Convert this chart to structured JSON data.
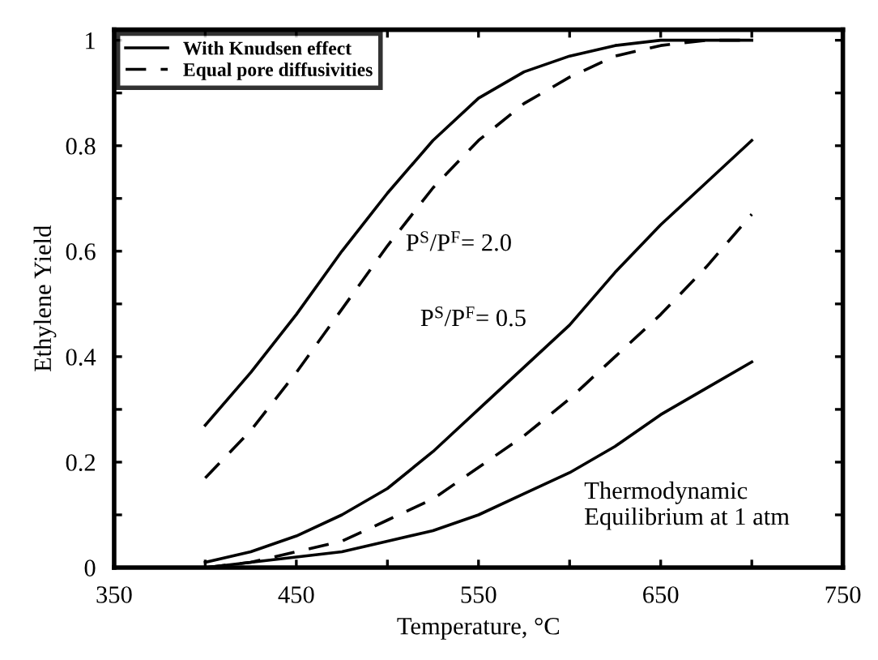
{
  "chart_data": {
    "type": "line",
    "xlabel": "Temperature, °C",
    "ylabel": "Ethylene Yield",
    "xlim": [
      350,
      750
    ],
    "ylim": [
      0,
      1.02
    ],
    "xticks": [
      350,
      {
        "value": 400,
        "label": null
      },
      450,
      {
        "value": 500,
        "label": null
      },
      550,
      {
        "value": 600,
        "label": null
      },
      650,
      {
        "value": 700,
        "label": null
      },
      750
    ],
    "yticks": [
      0,
      {
        "value": 0.1,
        "label": null
      },
      0.2,
      {
        "value": 0.3,
        "label": null
      },
      0.4,
      {
        "value": 0.5,
        "label": null
      },
      0.6,
      {
        "value": 0.7,
        "label": null
      },
      0.8,
      {
        "value": 0.9,
        "label": null
      },
      1
    ],
    "grid": false,
    "legend": "top left",
    "series": [
      {
        "name": "With Knudsen effect",
        "color": "#000000",
        "line_style": "solid",
        "x": [
          400,
          425,
          450,
          475,
          500,
          525,
          550,
          575,
          600,
          625,
          650,
          675,
          700
        ],
        "values": [
          0.27,
          0.37,
          0.48,
          0.6,
          0.71,
          0.81,
          0.89,
          0.94,
          0.97,
          0.99,
          1.0,
          1.0,
          1.0
        ]
      },
      {
        "name": "Equal pore diffusivities",
        "color": "#000000",
        "line_style": "dashed",
        "x": [
          400,
          425,
          450,
          475,
          500,
          525,
          550,
          575,
          600,
          625,
          650,
          675,
          700
        ],
        "values": [
          0.17,
          0.26,
          0.37,
          0.49,
          0.61,
          0.72,
          0.81,
          0.88,
          0.93,
          0.97,
          0.99,
          1.0,
          1.0
        ]
      },
      {
        "color": "#000000",
        "line_style": "solid",
        "x": [
          400,
          425,
          450,
          475,
          500,
          525,
          550,
          575,
          600,
          625,
          650,
          675,
          700
        ],
        "values": [
          0.01,
          0.03,
          0.06,
          0.1,
          0.15,
          0.22,
          0.3,
          0.38,
          0.46,
          0.56,
          0.65,
          0.73,
          0.81
        ]
      },
      {
        "color": "#000000",
        "line_style": "dashed",
        "x": [
          400,
          425,
          450,
          475,
          500,
          525,
          550,
          575,
          600,
          625,
          650,
          675,
          700
        ],
        "values": [
          0.0,
          0.01,
          0.03,
          0.05,
          0.09,
          0.13,
          0.19,
          0.25,
          0.32,
          0.4,
          0.48,
          0.57,
          0.67
        ]
      },
      {
        "color": "#000000",
        "line_style": "solid",
        "x": [
          400,
          425,
          450,
          475,
          500,
          525,
          550,
          575,
          600,
          625,
          650,
          675,
          700
        ],
        "values": [
          0.0,
          0.01,
          0.02,
          0.03,
          0.05,
          0.07,
          0.1,
          0.14,
          0.18,
          0.23,
          0.29,
          0.34,
          0.39
        ]
      }
    ],
    "annotations": [
      "P$^{S}$/P$^{F}$= 2.0",
      "P$^{S}$/P$^{F}$= 0.5",
      "Thermodynamic\nEquilibrium at 1 atm"
    ]
  }
}
